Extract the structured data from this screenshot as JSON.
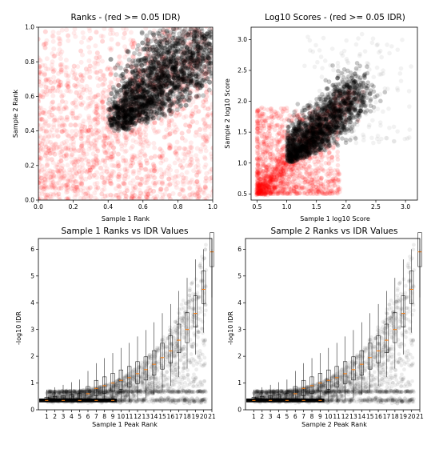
{
  "colors": {
    "pass": "#000000",
    "fail": "#ff0000",
    "median": "#ff7f0e",
    "whisker": "#000000"
  },
  "chart_data": [
    {
      "id": "ranks",
      "type": "scatter",
      "title": "Ranks - (red >= 0.05 IDR)",
      "xlabel": "Sample 1 Rank",
      "ylabel": "Sample 2 Rank",
      "xlim": [
        0.0,
        1.0
      ],
      "ylim": [
        0.0,
        1.0
      ],
      "xticks": [
        0.0,
        0.2,
        0.4,
        0.6,
        0.8,
        1.0
      ],
      "yticks": [
        0.0,
        0.2,
        0.4,
        0.6,
        0.8,
        1.0
      ],
      "tick_labels_x": [
        "0.0",
        "0.2",
        "0.4",
        "0.6",
        "0.8",
        "1.0"
      ],
      "tick_labels_y": [
        "0.0",
        "0.2",
        "0.4",
        "0.6",
        "0.8",
        "1.0"
      ],
      "series": [
        {
          "color": "#000000",
          "desc_region": "dense cloud from (0.40,0.40) to (1.0,1.0), lower-left bound curves from (0.42,0.42) to (0.85,0.55)"
        },
        {
          "color": "#ff0000",
          "desc_region": "scattered over whole range, dense at x,y < 0.4 and along diagonal"
        }
      ]
    },
    {
      "id": "scores",
      "type": "scatter",
      "title": "Log10 Scores - (red >= 0.05 IDR)",
      "xlabel": "Sample 1 log10 Score",
      "ylabel": "Sample 2 log10 Score",
      "xlim": [
        0.4,
        3.2
      ],
      "ylim": [
        0.4,
        3.2
      ],
      "xticks": [
        0.5,
        1.0,
        1.5,
        2.0,
        2.5,
        3.0
      ],
      "yticks": [
        0.5,
        1.0,
        1.5,
        2.0,
        2.5,
        3.0
      ],
      "tick_labels_x": [
        "0.5",
        "1.0",
        "1.5",
        "2.0",
        "2.5",
        "3.0"
      ],
      "tick_labels_y": [
        "0.5",
        "1.0",
        "1.5",
        "2.0",
        "2.5",
        "3.0"
      ]
    },
    {
      "id": "idr1",
      "type": "boxplot",
      "title": "Sample 1 Ranks vs IDR Values",
      "xlabel": "Sample 1 Peak Rank",
      "ylabel": "-log10 IDR",
      "xlim": [
        0,
        21
      ],
      "ylim": [
        0,
        6.4
      ],
      "yticks": [
        0,
        1,
        2,
        3,
        4,
        5,
        6
      ],
      "tick_labels_y": [
        "0",
        "1",
        "2",
        "3",
        "4",
        "5",
        "6"
      ],
      "categories": [
        "1",
        "2",
        "3",
        "4",
        "5",
        "6",
        "7",
        "8",
        "9",
        "10",
        "11",
        "12",
        "13",
        "14",
        "15",
        "16",
        "17",
        "18",
        "19",
        "20",
        "21"
      ],
      "medians": [
        0.35,
        0.35,
        0.35,
        0.36,
        0.37,
        0.6,
        0.8,
        0.9,
        1.0,
        1.1,
        1.2,
        1.35,
        1.5,
        1.7,
        1.95,
        2.2,
        2.6,
        3.0,
        3.6,
        4.5,
        5.9
      ]
    },
    {
      "id": "idr2",
      "type": "boxplot",
      "title": "Sample 2 Ranks vs IDR Values",
      "xlabel": "Sample 2 Peak Rank",
      "ylabel": "-log10 IDR",
      "xlim": [
        0,
        21
      ],
      "ylim": [
        0,
        6.4
      ],
      "yticks": [
        0,
        1,
        2,
        3,
        4,
        5,
        6
      ],
      "tick_labels_y": [
        "0",
        "1",
        "2",
        "3",
        "4",
        "5",
        "6"
      ],
      "categories": [
        "1",
        "2",
        "3",
        "4",
        "5",
        "6",
        "7",
        "8",
        "9",
        "10",
        "11",
        "12",
        "13",
        "14",
        "15",
        "16",
        "17",
        "18",
        "19",
        "20",
        "21"
      ],
      "medians": [
        0.35,
        0.35,
        0.35,
        0.36,
        0.37,
        0.6,
        0.8,
        0.9,
        1.0,
        1.1,
        1.2,
        1.35,
        1.5,
        1.7,
        1.95,
        2.2,
        2.6,
        3.0,
        3.6,
        4.5,
        5.9
      ]
    }
  ]
}
